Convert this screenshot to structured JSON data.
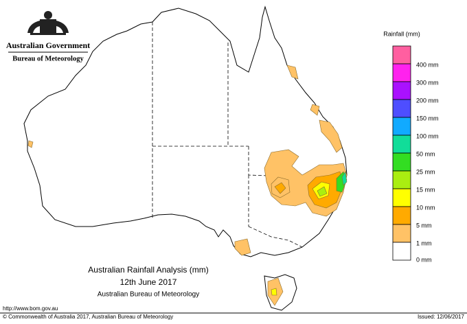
{
  "header": {
    "agency": "Australian Government",
    "bureau": "Bureau of Meteorology"
  },
  "legend": {
    "title": "Rainfall (mm)",
    "swatches": [
      {
        "color": "#ff5fa0",
        "label": null
      },
      {
        "color": "#ff22ee",
        "label": "400 mm"
      },
      {
        "color": "#aa11ff",
        "label": "300 mm"
      },
      {
        "color": "#4e4eff",
        "label": "200 mm"
      },
      {
        "color": "#11aaff",
        "label": "150 mm"
      },
      {
        "color": "#11dd99",
        "label": "100 mm"
      },
      {
        "color": "#33dd22",
        "label": "50 mm"
      },
      {
        "color": "#aaee11",
        "label": "25 mm"
      },
      {
        "color": "#ffff00",
        "label": "15 mm"
      },
      {
        "color": "#ffaa00",
        "label": "10 mm"
      },
      {
        "color": "#ffc266",
        "label": "5 mm"
      },
      {
        "color": "#ffffff",
        "label": "1 mm"
      }
    ],
    "bottom_label": "0 mm"
  },
  "title": {
    "line1": "Australian Rainfall Analysis (mm)",
    "line2": "12th June 2017",
    "line3": "Australian Bureau of Meteorology"
  },
  "footer": {
    "url": "http://www.bom.gov.au",
    "copyright": "© Commonwealth of Australia 2017, Australian Bureau of Meteorology",
    "issued": "Issued: 12/06/2017"
  }
}
